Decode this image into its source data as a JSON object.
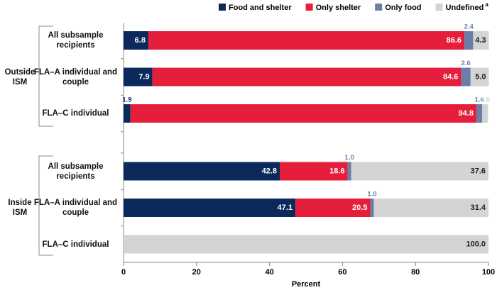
{
  "chart_data": {
    "type": "stacked-bar-horizontal",
    "groups": [
      {
        "name": "Outside ISM",
        "categories": [
          "All subsample recipients",
          "FLA–A individual and couple",
          "FLA–C individual"
        ]
      },
      {
        "name": "Inside ISM",
        "categories": [
          "All subsample recipients",
          "FLA–A individual and couple",
          "FLA–C individual"
        ]
      }
    ],
    "series": [
      {
        "name": "Food and shelter",
        "color": "#0b2a5b",
        "values": [
          6.8,
          7.9,
          1.9,
          42.8,
          47.1,
          null
        ],
        "value_labels": [
          "6.8",
          "7.9",
          "1.9",
          "42.8",
          "47.1",
          null
        ]
      },
      {
        "name": "Only shelter",
        "color": "#e51f3b",
        "values": [
          86.6,
          84.6,
          94.8,
          18.6,
          20.5,
          null
        ],
        "value_labels": [
          "86.6",
          "84.6",
          "94.8",
          "18.6",
          "20.5",
          null
        ]
      },
      {
        "name": "Only food",
        "color": "#6b7ea6",
        "values": [
          2.4,
          2.6,
          1.6,
          1.0,
          1.0,
          null
        ],
        "value_labels": [
          "2.4",
          "2.6",
          "1.6",
          "1.0",
          "1.0",
          null
        ]
      },
      {
        "name": "Undefined",
        "name_note": "a",
        "color": "#d4d4d4",
        "values": [
          4.3,
          5.0,
          1.6,
          37.6,
          31.4,
          100.0
        ],
        "value_labels": [
          "4.3",
          "5.0",
          "1.6",
          "37.6",
          "31.4",
          "100.0"
        ]
      }
    ],
    "x_label": "Percent",
    "xlim": [
      0,
      100
    ],
    "xticks": [
      0,
      20,
      40,
      60,
      80,
      100
    ]
  }
}
